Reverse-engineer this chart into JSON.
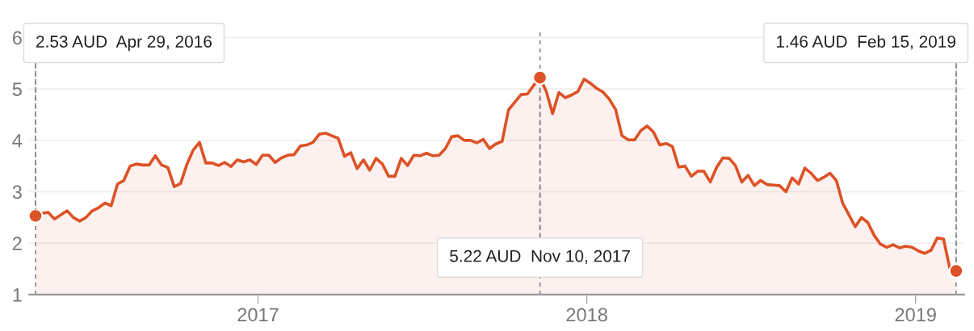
{
  "chart_data": {
    "type": "area",
    "x": [
      "2016-04-29",
      "2016-05-06",
      "2016-05-13",
      "2016-05-20",
      "2016-05-27",
      "2016-06-03",
      "2016-06-10",
      "2016-06-17",
      "2016-06-24",
      "2016-07-01",
      "2016-07-08",
      "2016-07-15",
      "2016-07-22",
      "2016-07-29",
      "2016-08-05",
      "2016-08-12",
      "2016-08-19",
      "2016-08-26",
      "2016-09-02",
      "2016-09-09",
      "2016-09-16",
      "2016-09-23",
      "2016-09-30",
      "2016-10-07",
      "2016-10-14",
      "2016-10-21",
      "2016-10-28",
      "2016-11-04",
      "2016-11-11",
      "2016-11-18",
      "2016-11-25",
      "2016-12-02",
      "2016-12-09",
      "2016-12-16",
      "2016-12-23",
      "2016-12-30",
      "2017-01-06",
      "2017-01-13",
      "2017-01-20",
      "2017-01-27",
      "2017-02-03",
      "2017-02-10",
      "2017-02-17",
      "2017-02-24",
      "2017-03-03",
      "2017-03-10",
      "2017-03-17",
      "2017-03-24",
      "2017-03-31",
      "2017-04-07",
      "2017-04-14",
      "2017-04-21",
      "2017-04-28",
      "2017-05-05",
      "2017-05-12",
      "2017-05-19",
      "2017-05-26",
      "2017-06-02",
      "2017-06-09",
      "2017-06-16",
      "2017-06-23",
      "2017-06-30",
      "2017-07-07",
      "2017-07-14",
      "2017-07-21",
      "2017-07-28",
      "2017-08-04",
      "2017-08-11",
      "2017-08-18",
      "2017-08-25",
      "2017-09-01",
      "2017-09-08",
      "2017-09-15",
      "2017-09-22",
      "2017-09-29",
      "2017-10-06",
      "2017-10-13",
      "2017-10-20",
      "2017-10-27",
      "2017-11-03",
      "2017-11-10",
      "2017-11-17",
      "2017-11-24",
      "2017-12-01",
      "2017-12-08",
      "2017-12-15",
      "2017-12-22",
      "2017-12-29",
      "2018-01-05",
      "2018-01-12",
      "2018-01-19",
      "2018-01-26",
      "2018-02-02",
      "2018-02-09",
      "2018-02-16",
      "2018-02-23",
      "2018-03-02",
      "2018-03-09",
      "2018-03-16",
      "2018-03-23",
      "2018-03-30",
      "2018-04-06",
      "2018-04-13",
      "2018-04-20",
      "2018-04-27",
      "2018-05-04",
      "2018-05-11",
      "2018-05-18",
      "2018-05-25",
      "2018-06-01",
      "2018-06-08",
      "2018-06-15",
      "2018-06-22",
      "2018-06-29",
      "2018-07-06",
      "2018-07-13",
      "2018-07-20",
      "2018-07-27",
      "2018-08-03",
      "2018-08-10",
      "2018-08-17",
      "2018-08-24",
      "2018-08-31",
      "2018-09-07",
      "2018-09-14",
      "2018-09-21",
      "2018-09-28",
      "2018-10-05",
      "2018-10-12",
      "2018-10-19",
      "2018-10-26",
      "2018-11-02",
      "2018-11-09",
      "2018-11-16",
      "2018-11-23",
      "2018-11-30",
      "2018-12-07",
      "2018-12-14",
      "2018-12-21",
      "2018-12-28",
      "2019-01-04",
      "2019-01-11",
      "2019-01-18",
      "2019-01-25",
      "2019-02-01",
      "2019-02-08",
      "2019-02-15"
    ],
    "series": [
      {
        "color": "#dd5226",
        "values": [
          2.53,
          2.58,
          2.6,
          2.47,
          2.55,
          2.63,
          2.5,
          2.43,
          2.5,
          2.63,
          2.69,
          2.78,
          2.73,
          3.15,
          3.22,
          3.5,
          3.54,
          3.52,
          3.52,
          3.7,
          3.52,
          3.47,
          3.1,
          3.16,
          3.53,
          3.81,
          3.96,
          3.56,
          3.56,
          3.51,
          3.57,
          3.49,
          3.62,
          3.58,
          3.62,
          3.53,
          3.71,
          3.71,
          3.57,
          3.66,
          3.71,
          3.72,
          3.89,
          3.91,
          3.96,
          4.12,
          4.14,
          4.09,
          4.04,
          3.69,
          3.76,
          3.45,
          3.62,
          3.42,
          3.65,
          3.54,
          3.3,
          3.3,
          3.65,
          3.51,
          3.71,
          3.7,
          3.75,
          3.7,
          3.71,
          3.84,
          4.07,
          4.09,
          4.0,
          4.0,
          3.95,
          4.02,
          3.84,
          3.93,
          3.98,
          4.59,
          4.74,
          4.89,
          4.9,
          5.07,
          5.22,
          4.95,
          4.52,
          4.93,
          4.83,
          4.88,
          4.95,
          5.19,
          5.11,
          5.01,
          4.94,
          4.8,
          4.6,
          4.09,
          4.01,
          4.01,
          4.19,
          4.28,
          4.16,
          3.91,
          3.94,
          3.88,
          3.48,
          3.5,
          3.3,
          3.4,
          3.4,
          3.19,
          3.47,
          3.66,
          3.65,
          3.51,
          3.19,
          3.32,
          3.12,
          3.22,
          3.14,
          3.13,
          3.12,
          3.0,
          3.27,
          3.15,
          3.46,
          3.36,
          3.22,
          3.28,
          3.36,
          3.22,
          2.78,
          2.55,
          2.32,
          2.5,
          2.4,
          2.15,
          1.98,
          1.92,
          1.97,
          1.91,
          1.94,
          1.92,
          1.85,
          1.8,
          1.86,
          2.1,
          2.08,
          1.51,
          1.46
        ]
      },
      {
        "type": "scatter",
        "color": "#dd5226",
        "marker": "circle",
        "x": [
          "2016-04-29",
          "2017-11-10",
          "2019-02-15"
        ],
        "values": [
          2.53,
          5.22,
          1.46
        ]
      }
    ],
    "xlim": [
      "2016-04-22",
      "2019-02-24"
    ],
    "xticks": [
      {
        "value": "2017-01-01",
        "label": "2017"
      },
      {
        "value": "2018-01-01",
        "label": "2018"
      },
      {
        "value": "2019-01-01",
        "label": "2019"
      }
    ],
    "ylim": [
      1,
      6.15
    ],
    "yticks": [
      1,
      2,
      3,
      4,
      5,
      6
    ],
    "grid": "y",
    "legend": false,
    "ref_lines": [
      {
        "axis": "x",
        "value": "2016-04-29",
        "color": "#888888",
        "line_style": "dashed"
      },
      {
        "axis": "x",
        "value": "2017-11-10",
        "color": "#888888",
        "line_style": "dashed"
      },
      {
        "axis": "x",
        "value": "2019-02-15",
        "color": "#888888",
        "line_style": "dashed"
      }
    ],
    "annotations": [
      {
        "text": "2.53 AUD  Apr 29, 2016",
        "x": "2016-04-29",
        "y": 2.53
      },
      {
        "text": "5.22 AUD  Nov 10, 2017",
        "x": "2017-11-10",
        "y": 5.22
      },
      {
        "text": "1.46 AUD  Feb 15, 2019",
        "x": "2019-02-15",
        "y": 1.46
      }
    ]
  }
}
